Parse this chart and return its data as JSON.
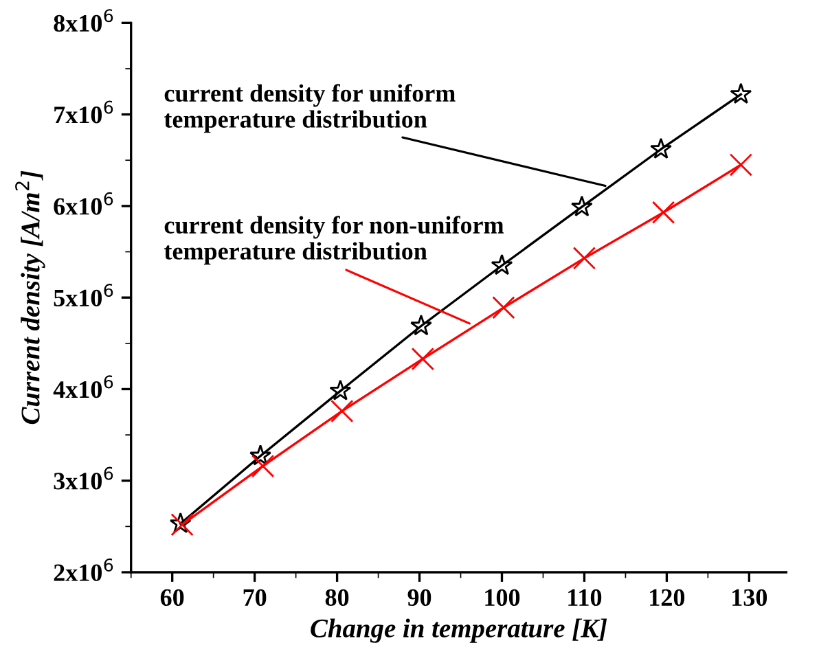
{
  "chart_data": {
    "type": "line",
    "xlabel": "Change in temperature [K]",
    "ylabel": "Current density [A/m$^{2}$]",
    "series": [
      {
        "name": null,
        "color": "#000000",
        "marker": "star",
        "x": [
          61,
          70.7,
          80.4,
          90.2,
          100,
          109.7,
          119.3,
          129
        ],
        "values": [
          2530000,
          3270000,
          3980000,
          4690000,
          5350000,
          5990000,
          6620000,
          7220000
        ]
      },
      {
        "name": null,
        "color": "#ff0000",
        "marker": "cross",
        "x": [
          61.2,
          71,
          80.6,
          90.4,
          100.2,
          110,
          119.6,
          129
        ],
        "values": [
          2520000,
          3160000,
          3760000,
          4330000,
          4890000,
          5430000,
          5930000,
          6450000
        ]
      }
    ],
    "annotations": [
      {
        "text": "current density for uniform\ntemperature distribution",
        "x": 113,
        "y": 6210000
      },
      {
        "text": "current density for non-uniform\ntemperature distribution",
        "x": 96.5,
        "y": 4700000
      }
    ],
    "xlim": [
      55,
      134.5
    ],
    "ylim": [
      2000000,
      8000000
    ],
    "xticks": [
      60,
      70,
      80,
      90,
      100,
      110,
      120,
      130
    ],
    "yticks": [
      {
        "value": 2000000,
        "label": "2x10$^{6}$"
      },
      {
        "value": 3000000,
        "label": "3x10$^{6}$"
      },
      {
        "value": 4000000,
        "label": "4x10$^{6}$"
      },
      {
        "value": 5000000,
        "label": "5x10$^{6}$"
      },
      {
        "value": 6000000,
        "label": "6x10$^{6}$"
      },
      {
        "value": 7000000,
        "label": "7x10$^{6}$"
      },
      {
        "value": 8000000,
        "label": "8x10$^{6}$"
      }
    ],
    "grid": false,
    "legend": false
  }
}
